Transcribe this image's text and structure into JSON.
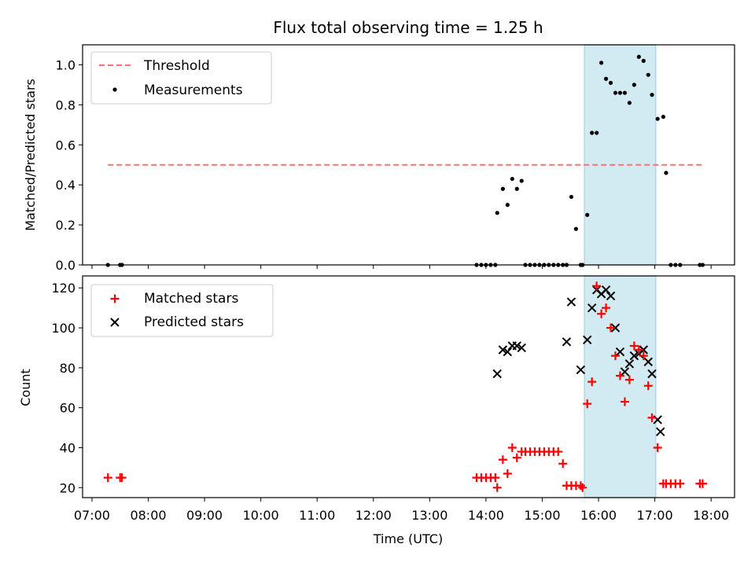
{
  "title": "Flux total observing time = 1.25 h",
  "colors": {
    "threshold": "#ff7070",
    "measurements": "#000000",
    "matched": "#ff0000",
    "predicted": "#000000",
    "highlight": "#add8e6"
  },
  "chart_data": [
    {
      "type": "scatter",
      "panel": "top",
      "ylabel": "Matched/Predicted stars",
      "ylim": [
        0,
        1.1
      ],
      "yticks": [
        "0.0",
        "0.2",
        "0.4",
        "0.6",
        "0.8",
        "1.0"
      ],
      "ytick_values": [
        0,
        0.2,
        0.4,
        0.6,
        0.8,
        1.0
      ],
      "legend_position": "upper-left",
      "highlight_band": {
        "x": [
          "15:45",
          "17:01"
        ]
      },
      "series": [
        {
          "name": "Threshold",
          "style": "dashed-line",
          "x": [
            "07:17",
            "17:51"
          ],
          "y": [
            0.5,
            0.5
          ]
        },
        {
          "name": "Measurements",
          "style": "dot",
          "x": [
            "07:17",
            "07:30",
            "07:32",
            "13:50",
            "13:55",
            "14:00",
            "14:05",
            "14:10",
            "14:12",
            "14:18",
            "14:23",
            "14:28",
            "14:33",
            "14:38",
            "14:42",
            "14:47",
            "14:52",
            "14:57",
            "15:02",
            "15:07",
            "15:12",
            "15:17",
            "15:22",
            "15:26",
            "15:31",
            "15:36",
            "15:41",
            "15:43",
            "15:48",
            "15:53",
            "15:58",
            "16:03",
            "16:08",
            "16:13",
            "16:18",
            "16:23",
            "16:28",
            "16:33",
            "16:38",
            "16:43",
            "16:48",
            "16:53",
            "16:57",
            "17:03",
            "17:09",
            "17:12",
            "17:17",
            "17:22",
            "17:27",
            "17:48",
            "17:51"
          ],
          "y": [
            0,
            0,
            0,
            0,
            0,
            0,
            0,
            0,
            0.26,
            0.38,
            0.3,
            0.43,
            0.38,
            0.42,
            0,
            0,
            0,
            0,
            0,
            0,
            0,
            0,
            0,
            0,
            0.34,
            0.18,
            0,
            0,
            0.25,
            0.66,
            0.66,
            1.01,
            0.93,
            0.91,
            0.86,
            0.86,
            0.86,
            0.81,
            0.9,
            1.04,
            1.02,
            0.95,
            0.85,
            0.73,
            0.74,
            0.46,
            0,
            0,
            0,
            0,
            0
          ]
        }
      ]
    },
    {
      "type": "scatter",
      "panel": "bottom",
      "xlabel": "Time (UTC)",
      "ylabel": "Count",
      "ylim": [
        15,
        126
      ],
      "yticks": [
        "20",
        "40",
        "60",
        "80",
        "100",
        "120"
      ],
      "ytick_values": [
        20,
        40,
        60,
        80,
        100,
        120
      ],
      "xlim": [
        "06:50",
        "18:25"
      ],
      "xticks": [
        "07:00",
        "08:00",
        "09:00",
        "10:00",
        "11:00",
        "12:00",
        "13:00",
        "14:00",
        "15:00",
        "16:00",
        "17:00",
        "18:00"
      ],
      "legend_position": "upper-left",
      "highlight_band": {
        "x": [
          "15:45",
          "17:01"
        ]
      },
      "series": [
        {
          "name": "Matched stars",
          "marker": "plus",
          "x": [
            "07:17",
            "07:30",
            "07:32",
            "13:50",
            "13:55",
            "14:00",
            "14:05",
            "14:10",
            "14:12",
            "14:18",
            "14:23",
            "14:28",
            "14:33",
            "14:38",
            "14:42",
            "14:47",
            "14:52",
            "14:57",
            "15:02",
            "15:07",
            "15:12",
            "15:17",
            "15:22",
            "15:26",
            "15:31",
            "15:36",
            "15:41",
            "15:43",
            "15:48",
            "15:53",
            "15:58",
            "16:03",
            "16:08",
            "16:13",
            "16:18",
            "16:23",
            "16:28",
            "16:33",
            "16:38",
            "16:43",
            "16:48",
            "16:53",
            "16:57",
            "17:03",
            "17:09",
            "17:12",
            "17:17",
            "17:22",
            "17:27",
            "17:48",
            "17:51"
          ],
          "y": [
            25,
            25,
            25,
            25,
            25,
            25,
            25,
            25,
            20,
            34,
            27,
            40,
            35,
            38,
            38,
            38,
            38,
            38,
            38,
            38,
            38,
            38,
            32,
            21,
            21,
            21,
            21,
            20,
            62,
            73,
            121,
            107,
            110,
            100,
            86,
            76,
            63,
            74,
            91,
            89,
            86,
            71,
            55,
            40,
            22,
            22,
            22,
            22,
            22,
            22,
            22
          ]
        },
        {
          "name": "Predicted stars",
          "marker": "x",
          "x": [
            "14:12",
            "14:18",
            "14:23",
            "14:28",
            "14:33",
            "14:38",
            "15:26",
            "15:31",
            "15:41",
            "15:48",
            "15:53",
            "15:58",
            "16:03",
            "16:08",
            "16:13",
            "16:18",
            "16:23",
            "16:28",
            "16:33",
            "16:38",
            "16:43",
            "16:48",
            "16:53",
            "16:57",
            "17:03",
            "17:06"
          ],
          "y": [
            77,
            89,
            88,
            91,
            91,
            90,
            93,
            113,
            79,
            94,
            110,
            119,
            117,
            119,
            116,
            100,
            88,
            78,
            82,
            86,
            87,
            89,
            83,
            77,
            54,
            48
          ]
        }
      ]
    }
  ]
}
